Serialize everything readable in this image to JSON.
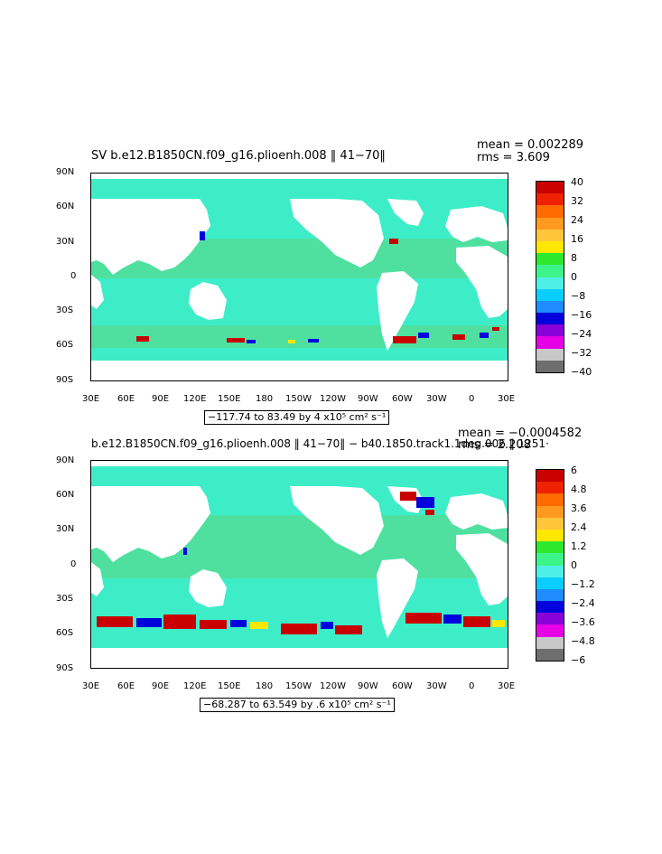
{
  "panel1": {
    "title": "SV b.e12.B1850CN.f09_g16.plioenh.008 ‖ 41−70‖",
    "mean": "mean = 0.002289",
    "rms": "rms = 3.609",
    "range_text": "−117.74 to 83.49 by 4 x10⁵ cm² s⁻¹",
    "colorbar_labels": [
      "40",
      "32",
      "24",
      "16",
      "8",
      "0",
      "−8",
      "−16",
      "−24",
      "−32",
      "−40"
    ]
  },
  "panel2": {
    "title": "b.e12.B1850CN.f09_g16.plioenh.008 ‖ 41−70‖ − b40.1850.track1.1deg.006 ‖ 1251·",
    "mean": "mean = −0.0004582",
    "rms": "rms = 2.208",
    "range_text": "−68.287 to 63.549 by .6 x10⁵ cm² s⁻¹",
    "colorbar_labels": [
      "6",
      "4.8",
      "3.6",
      "2.4",
      "1.2",
      "0",
      "−1.2",
      "−2.4",
      "−3.6",
      "−4.8",
      "−6"
    ]
  },
  "lat_labels": [
    "90N",
    "60N",
    "30N",
    "0",
    "30S",
    "60S",
    "90S"
  ],
  "lon_labels": [
    "30E",
    "60E",
    "90E",
    "120E",
    "150E",
    "180",
    "150W",
    "120W",
    "90W",
    "60W",
    "30W",
    "0",
    "30E"
  ],
  "colorbar_colors": [
    "#c80000",
    "#ee2200",
    "#ff6a00",
    "#ff9a1e",
    "#ffc63c",
    "#ffe800",
    "#2ee82e",
    "#3cf58a",
    "#4ef0e6",
    "#0aceff",
    "#1e8cff",
    "#0000dc",
    "#8a00d8",
    "#e600e6",
    "#c8c8c8",
    "#6e6e6e"
  ],
  "map_colors": {
    "ocean": "#3dedc8",
    "ocean_alt": "#4fe0a0",
    "land": "#ffffff",
    "anomaly_red": "#c80000",
    "anomaly_blue": "#0000dc"
  }
}
